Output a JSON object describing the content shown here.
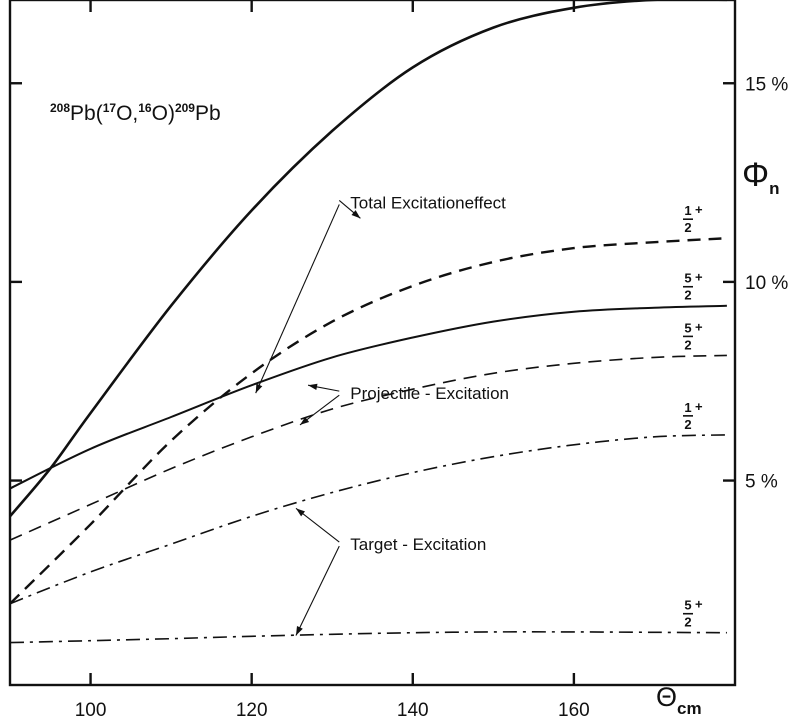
{
  "chart_data": {
    "type": "line",
    "title": "²⁰⁸Pb(¹⁷O,¹⁶O)²⁰⁹Pb",
    "title_parts": {
      "a_mass": "208",
      "a_sym": "Pb(",
      "b_mass": "17",
      "b_sym": "O,",
      "c_mass": "16",
      "c_sym": "O)",
      "d_mass": "209",
      "d_sym": "Pb"
    },
    "xlabel": "Θcm",
    "xlabel_parts": {
      "main": "Θ",
      "sub": "cm"
    },
    "ylabel": "Φn",
    "ylabel_parts": {
      "main": "Φ",
      "sub": "n"
    },
    "xlim": [
      90,
      180
    ],
    "ylim": [
      0,
      17
    ],
    "x_ticks": [
      100,
      120,
      140,
      160
    ],
    "x_tick_labels": [
      "100",
      "120",
      "140",
      "160"
    ],
    "y_ticks": [
      5,
      10,
      15
    ],
    "y_tick_labels": [
      "5 %",
      "10 %",
      "15 %"
    ],
    "grid": false,
    "series": [
      {
        "style": "solid",
        "line_width": 2.6,
        "tag": "1/2+",
        "x": [
          90,
          95,
          100,
          110,
          120,
          130,
          140,
          150,
          160,
          170,
          179
        ],
        "y": [
          4.1,
          5.3,
          6.7,
          9.4,
          11.8,
          13.8,
          15.4,
          16.4,
          16.9,
          17.1,
          17.1
        ]
      },
      {
        "style": "dashed",
        "line_width": 2.4,
        "tag": "1/2+",
        "x": [
          90,
          100,
          110,
          120,
          130,
          140,
          150,
          160,
          170,
          179
        ],
        "y": [
          1.9,
          3.9,
          6.0,
          7.7,
          9.0,
          9.9,
          10.5,
          10.85,
          11.0,
          11.1
        ]
      },
      {
        "style": "solid",
        "line_width": 2.0,
        "tag": "5/2+",
        "x": [
          90,
          100,
          110,
          120,
          130,
          140,
          150,
          160,
          170,
          179
        ],
        "y": [
          4.8,
          5.8,
          6.6,
          7.4,
          8.1,
          8.6,
          9.0,
          9.25,
          9.35,
          9.4
        ]
      },
      {
        "style": "dashed",
        "line_width": 1.6,
        "tag": "5/2+",
        "x": [
          90,
          100,
          110,
          120,
          130,
          140,
          150,
          160,
          170,
          179
        ],
        "y": [
          3.5,
          4.4,
          5.3,
          6.1,
          6.8,
          7.3,
          7.7,
          7.95,
          8.1,
          8.15
        ]
      },
      {
        "style": "dashdot",
        "line_width": 1.6,
        "tag": "1/2+",
        "x": [
          90,
          100,
          110,
          120,
          130,
          140,
          150,
          160,
          170,
          179
        ],
        "y": [
          1.9,
          2.7,
          3.4,
          4.1,
          4.7,
          5.2,
          5.6,
          5.9,
          6.1,
          6.15
        ]
      },
      {
        "style": "dashdot",
        "line_width": 1.6,
        "tag": "5/2+",
        "x": [
          90,
          100,
          110,
          120,
          130,
          140,
          150,
          160,
          170,
          179
        ],
        "y": [
          0.92,
          0.97,
          1.02,
          1.08,
          1.13,
          1.17,
          1.19,
          1.19,
          1.18,
          1.17
        ]
      }
    ],
    "annotations": [
      {
        "text": "Total  Excitationeffect",
        "tx": 131,
        "ty": 12.0,
        "arrows": [
          {
            "x": 133.5,
            "y": 11.6
          },
          {
            "x": 120.5,
            "y": 7.2
          }
        ]
      },
      {
        "text": "Projectile - Excitation",
        "tx": 131,
        "ty": 7.2,
        "arrows": [
          {
            "x": 127,
            "y": 7.4
          },
          {
            "x": 126,
            "y": 6.4
          }
        ]
      },
      {
        "text": "Target - Excitation",
        "tx": 131,
        "ty": 3.4,
        "arrows": [
          {
            "x": 125.5,
            "y": 4.3
          },
          {
            "x": 125.5,
            "y": 1.1
          }
        ]
      }
    ]
  }
}
